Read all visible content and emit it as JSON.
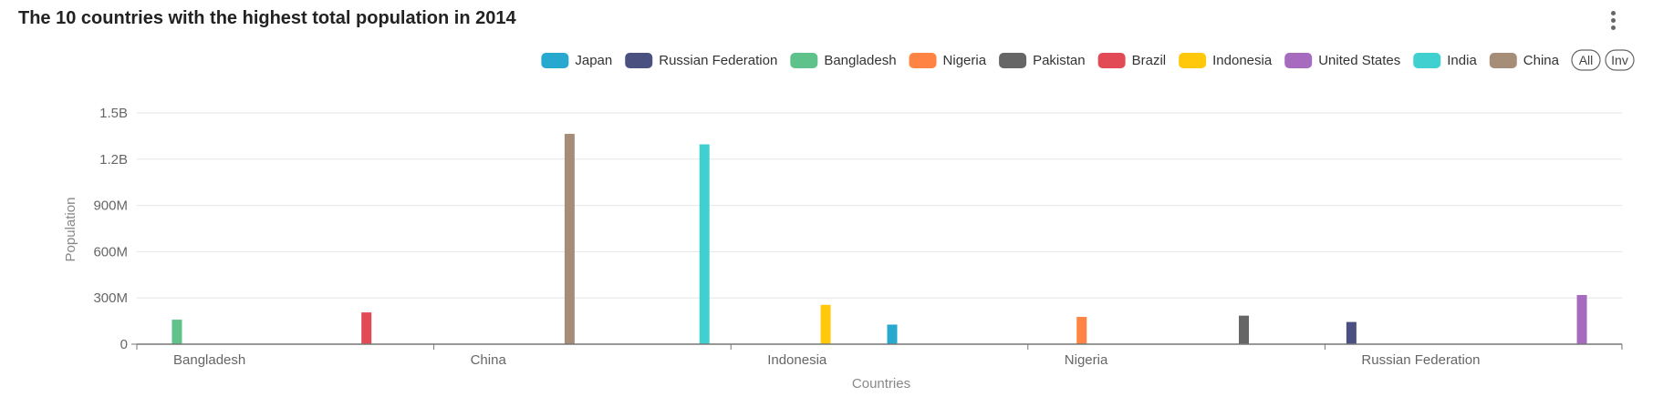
{
  "chart_data": {
    "type": "bar",
    "title": "The 10 countries with the highest total population in 2014",
    "xlabel": "Countries",
    "ylabel": "Population",
    "ylim": [
      0,
      1500000000
    ],
    "yticks": [
      {
        "value": 0,
        "label": "0"
      },
      {
        "value": 300000000,
        "label": "300M"
      },
      {
        "value": 600000000,
        "label": "600M"
      },
      {
        "value": 900000000,
        "label": "900M"
      },
      {
        "value": 1200000000,
        "label": "1.2B"
      },
      {
        "value": 1500000000,
        "label": "1.5B"
      }
    ],
    "categories": [
      "Bangladesh",
      "Brazil",
      "China",
      "India",
      "Indonesia",
      "Japan",
      "Nigeria",
      "Pakistan",
      "Russian Federation",
      "United States"
    ],
    "visible_category_labels": [
      "Bangladesh",
      "China",
      "Indonesia",
      "Nigeria",
      "Russian Federation"
    ],
    "series": [
      {
        "name": "Japan",
        "color": "#27a9cf",
        "values": [
          null,
          null,
          null,
          null,
          null,
          127000000,
          null,
          null,
          null,
          null
        ]
      },
      {
        "name": "Russian Federation",
        "color": "#4a5180",
        "values": [
          null,
          null,
          null,
          null,
          null,
          null,
          null,
          null,
          144000000,
          null
        ]
      },
      {
        "name": "Bangladesh",
        "color": "#5ec28a",
        "values": [
          159000000,
          null,
          null,
          null,
          null,
          null,
          null,
          null,
          null,
          null
        ]
      },
      {
        "name": "Nigeria",
        "color": "#ff8444",
        "values": [
          null,
          null,
          null,
          null,
          null,
          null,
          177000000,
          null,
          null,
          null
        ]
      },
      {
        "name": "Pakistan",
        "color": "#666666",
        "values": [
          null,
          null,
          null,
          null,
          null,
          null,
          null,
          185000000,
          null,
          null
        ]
      },
      {
        "name": "Brazil",
        "color": "#e24a56",
        "values": [
          null,
          206000000,
          null,
          null,
          null,
          null,
          null,
          null,
          null,
          null
        ]
      },
      {
        "name": "Indonesia",
        "color": "#ffc80a",
        "values": [
          null,
          null,
          null,
          null,
          255000000,
          null,
          null,
          null,
          null,
          null
        ]
      },
      {
        "name": "United States",
        "color": "#a66bbf",
        "values": [
          null,
          null,
          null,
          null,
          null,
          null,
          null,
          null,
          null,
          319000000
        ]
      },
      {
        "name": "India",
        "color": "#40d0d0",
        "values": [
          null,
          null,
          null,
          1296000000,
          null,
          null,
          null,
          null,
          null,
          null
        ]
      },
      {
        "name": "China",
        "color": "#a58d78",
        "values": [
          null,
          null,
          1364000000,
          null,
          null,
          null,
          null,
          null,
          null,
          null
        ]
      }
    ],
    "legend_buttons": [
      "All",
      "Inv"
    ],
    "grid": true,
    "legend_position": "top-right"
  }
}
